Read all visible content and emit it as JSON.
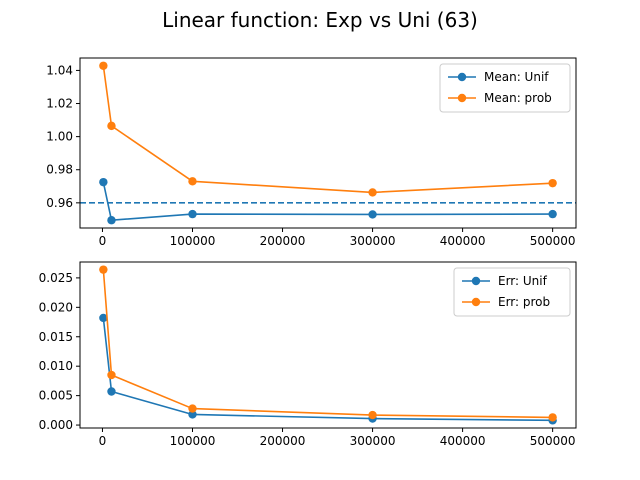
{
  "title": "Linear function: Exp vs Uni (63)",
  "colors": {
    "unif": "#1f77b4",
    "prob": "#ff7f0e",
    "axis": "#000000",
    "legend_border": "#cccccc"
  },
  "chart_data": [
    {
      "type": "line",
      "x": [
        1000,
        10000,
        100000,
        300000,
        500000
      ],
      "series": [
        {
          "name": "Mean: Unif",
          "values": [
            0.9725,
            0.9495,
            0.9532,
            0.953,
            0.9532
          ],
          "color": "#1f77b4",
          "marker": "circle"
        },
        {
          "name": "Mean: prob",
          "values": [
            1.0428,
            1.0065,
            0.973,
            0.9663,
            0.9719
          ],
          "color": "#ff7f0e",
          "marker": "circle"
        }
      ],
      "reference_line": {
        "y": 0.96,
        "style": "dashed",
        "color": "#1f77b4"
      },
      "xlim": [
        -24950,
        525950
      ],
      "ylim": [
        0.9448,
        1.0475
      ],
      "xticks": [
        0,
        100000,
        200000,
        300000,
        400000,
        500000
      ],
      "xtick_labels": [
        "0",
        "100000",
        "200000",
        "300000",
        "400000",
        "500000"
      ],
      "yticks": [
        0.96,
        0.98,
        1.0,
        1.02,
        1.04
      ],
      "ytick_labels": [
        "0.96",
        "0.98",
        "1.00",
        "1.02",
        "1.04"
      ],
      "legend": "top-right",
      "grid": false
    },
    {
      "type": "line",
      "x": [
        1000,
        10000,
        100000,
        300000,
        500000
      ],
      "series": [
        {
          "name": "Err: Unif",
          "values": [
            0.0182,
            0.0057,
            0.0018,
            0.0011,
            0.0008
          ],
          "color": "#1f77b4",
          "marker": "circle"
        },
        {
          "name": "Err: prob",
          "values": [
            0.0264,
            0.0085,
            0.0028,
            0.0017,
            0.0013
          ],
          "color": "#ff7f0e",
          "marker": "circle"
        }
      ],
      "xlim": [
        -24950,
        525950
      ],
      "ylim": [
        -0.0005,
        0.0277
      ],
      "xticks": [
        0,
        100000,
        200000,
        300000,
        400000,
        500000
      ],
      "xtick_labels": [
        "0",
        "100000",
        "200000",
        "300000",
        "400000",
        "500000"
      ],
      "yticks": [
        0.0,
        0.005,
        0.01,
        0.015,
        0.02,
        0.025
      ],
      "ytick_labels": [
        "0.000",
        "0.005",
        "0.010",
        "0.015",
        "0.020",
        "0.025"
      ],
      "legend": "top-right",
      "grid": false
    }
  ]
}
